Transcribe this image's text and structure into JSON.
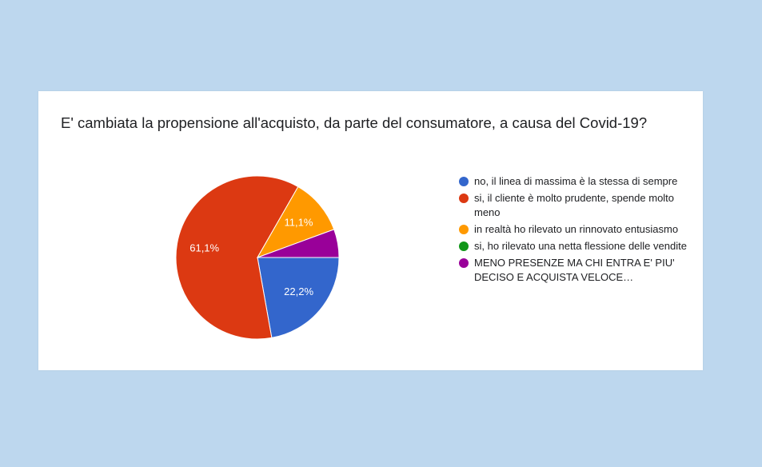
{
  "chart_data": {
    "type": "pie",
    "title": "E' cambiata la propensione all'acquisto, da parte del consumatore, a causa del Covid-19?",
    "slices": [
      {
        "name": "no, il linea di massima è la stessa di sempre",
        "value": 22.2,
        "label": "22,2%",
        "color": "#3366cc"
      },
      {
        "name": "si, il cliente è molto prudente, spende molto meno",
        "value": 61.1,
        "label": "61,1%",
        "color": "#dc3912"
      },
      {
        "name": "in realtà ho rilevato un rinnovato entusiasmo",
        "value": 11.1,
        "label": "11,1%",
        "color": "#ff9900"
      },
      {
        "name": "si, ho rilevato una netta flessione delle vendite",
        "value": 0,
        "label": "",
        "color": "#109618"
      },
      {
        "name": "MENO PRESENZE MA CHI ENTRA E' PIU' DECISO E ACQUISTA VELOCE…",
        "value": 5.6,
        "label": "",
        "color": "#990099"
      }
    ],
    "legend": {
      "position": "right",
      "items": [
        "no, il linea di massima è la stessa di sempre",
        "si, il cliente è molto prudente, spende molto meno",
        "in realtà ho rilevato un rinnovato entusiasmo",
        "si, ho rilevato una netta flessione delle vendite",
        "MENO PRESENZE MA CHI ENTRA E' PIU' DECISO E ACQUISTA VELOCE…"
      ]
    }
  }
}
